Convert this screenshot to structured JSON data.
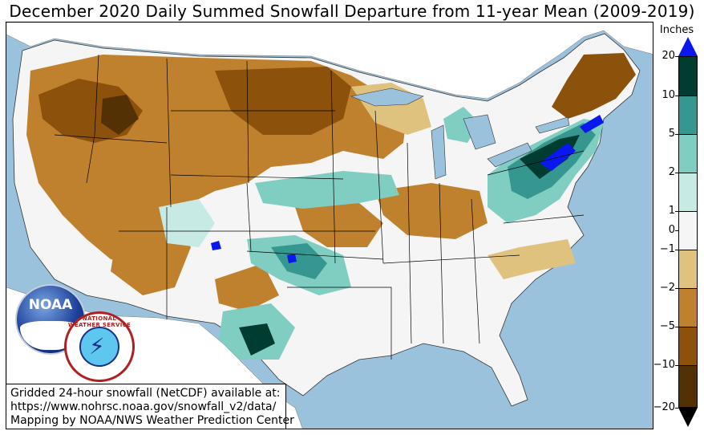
{
  "title": "December 2020 Daily Summed Snowfall Departure from 11-year Mean (2009-2019)",
  "credit": {
    "line1": "Gridded 24-hour snowfall (NetCDF) available at:",
    "line2": "https://www.nohrsc.noaa.gov/snowfall_v2/data/",
    "line3": "Mapping by NOAA/NWS Weather Prediction Center"
  },
  "logos": {
    "noaa_text": "NOAA",
    "nws_text": "NATIONAL WEATHER SERVICE"
  },
  "legend": {
    "title": "Inches",
    "ticks": [
      "20",
      "10",
      "5",
      "2",
      "1",
      "0",
      "−1",
      "−2",
      "−5",
      "−10",
      "−20"
    ],
    "bins": [
      {
        "range": "10 to 20",
        "color": "#003c30"
      },
      {
        "range": "5 to 10",
        "color": "#35978f"
      },
      {
        "range": "2 to 5",
        "color": "#80cdc1"
      },
      {
        "range": "1 to 2",
        "color": "#c7eae5"
      },
      {
        "range": "-1 to 1",
        "color": "#f5f5f5"
      },
      {
        "range": "-2 to -1",
        "color": "#dfc27d"
      },
      {
        "range": "-5 to -2",
        "color": "#bf812d"
      },
      {
        "range": "-10 to -5",
        "color": "#8c510a"
      },
      {
        "range": "-20 to -10",
        "color": "#543005"
      }
    ],
    "over_color": "#0a18f0",
    "under_color": "#000000"
  },
  "colors": {
    "water": "#9bc2dc",
    "land_outside": "#ffffff"
  }
}
